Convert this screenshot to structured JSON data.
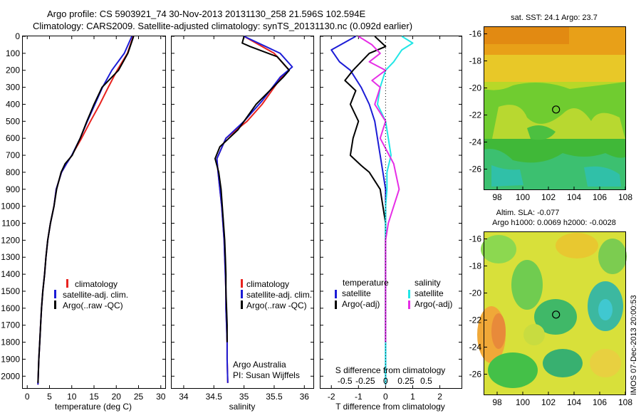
{
  "header": {
    "line1": "Argo profile: CS 5903921_74 30-Nov-2013 20131130_258 21.596S 102.594E",
    "line2": "Climatology: CARS2009. Satellite-adjusted climatology: synTS_20131130.nc (0.092d earlier)"
  },
  "colors": {
    "climatology": "#e8231f",
    "satellite": "#1c1cd6",
    "argo": "#000000",
    "sal_satellite": "#22e6e6",
    "sal_argo": "#e62ee6"
  },
  "chart_data": [
    {
      "id": "temperature",
      "type": "line",
      "xlabel": "temperature (deg C)",
      "xlim": [
        -1,
        31
      ],
      "xticks": [
        0,
        5,
        10,
        15,
        20,
        25,
        30
      ],
      "ylim": [
        2070,
        0
      ],
      "yticks": [
        0,
        100,
        200,
        300,
        400,
        500,
        600,
        700,
        800,
        900,
        1000,
        1100,
        1200,
        1300,
        1400,
        1500,
        1600,
        1700,
        1800,
        1900,
        2000
      ],
      "legend": [
        "climatology",
        "satellite-adj. clim.",
        "Argo(..raw -QC)"
      ],
      "series": [
        {
          "name": "climatology",
          "color": "#e8231f",
          "x": [
            23.8,
            22.5,
            20.2,
            18.2,
            16.3,
            14.2,
            12.2,
            10.0,
            8.8,
            7.7,
            6.5,
            6.0,
            5.2,
            4.6,
            4.2,
            3.9,
            3.5,
            3.2,
            3.0,
            2.8,
            2.6,
            2.4
          ],
          "y": [
            0,
            100,
            200,
            300,
            400,
            500,
            600,
            700,
            750,
            800,
            900,
            1000,
            1100,
            1200,
            1300,
            1400,
            1500,
            1600,
            1700,
            1800,
            1900,
            2050
          ]
        },
        {
          "name": "satellite-adj. clim.",
          "color": "#1c1cd6",
          "x": [
            23.5,
            21.8,
            19.0,
            16.9,
            15.2,
            13.5,
            11.9,
            10.0,
            8.8,
            7.7,
            6.5,
            6.0,
            5.2,
            4.6,
            4.2,
            3.9,
            3.5,
            3.2,
            3.0,
            2.8,
            2.6,
            2.4
          ],
          "y": [
            0,
            100,
            200,
            300,
            400,
            500,
            600,
            700,
            750,
            800,
            900,
            1000,
            1100,
            1200,
            1300,
            1400,
            1500,
            1600,
            1700,
            1800,
            1900,
            2050
          ]
        },
        {
          "name": "Argo(..raw -QC)",
          "color": "#000000",
          "x": [
            23.9,
            22.6,
            20.5,
            16.8,
            15.0,
            13.4,
            11.9,
            10.1,
            8.5,
            7.6,
            6.6,
            6.0,
            5.2,
            4.6,
            4.2,
            3.9,
            3.5,
            3.2,
            3.0,
            2.8,
            2.6,
            2.4
          ],
          "y": [
            0,
            100,
            200,
            300,
            400,
            500,
            600,
            700,
            750,
            800,
            900,
            1000,
            1100,
            1200,
            1300,
            1400,
            1500,
            1600,
            1700,
            1800,
            1900,
            2040
          ]
        }
      ]
    },
    {
      "id": "salinity",
      "type": "line",
      "xlabel": "salinity",
      "xlim": [
        33.8,
        36.15
      ],
      "xticks": [
        34,
        34.5,
        35,
        35.5,
        36
      ],
      "ylim": [
        2070,
        0
      ],
      "legend": [
        "climatology",
        "satellite-adj. clim.",
        "Argo(..raw -QC)"
      ],
      "annotations": [
        "Argo Australia",
        "PI: Susan Wijffels"
      ],
      "series": [
        {
          "name": "climatology",
          "color": "#e8231f",
          "x": [
            35.0,
            35.5,
            35.75,
            35.6,
            35.3,
            35.05,
            34.7,
            34.55,
            34.57,
            34.6,
            34.63,
            34.65,
            34.67,
            34.68,
            34.69,
            34.7,
            34.7,
            34.71,
            34.72,
            34.72,
            34.73
          ],
          "y": [
            0,
            100,
            200,
            250,
            400,
            500,
            600,
            720,
            800,
            900,
            1000,
            1100,
            1200,
            1300,
            1400,
            1500,
            1600,
            1700,
            1800,
            1900,
            2040
          ]
        },
        {
          "name": "satellite-adj. clim.",
          "color": "#1c1cd6",
          "x": [
            35.0,
            35.6,
            35.8,
            35.6,
            35.3,
            35.0,
            34.7,
            34.55,
            34.57,
            34.6,
            34.63,
            34.65,
            34.67,
            34.68,
            34.69,
            34.7,
            34.7,
            34.71,
            34.72,
            34.72,
            34.73
          ],
          "y": [
            0,
            100,
            180,
            240,
            380,
            500,
            600,
            720,
            800,
            900,
            1000,
            1100,
            1200,
            1300,
            1400,
            1500,
            1600,
            1700,
            1800,
            1900,
            2040
          ]
        },
        {
          "name": "Argo(..raw -QC)",
          "color": "#000000",
          "x": [
            35.0,
            34.97,
            35.1,
            35.55,
            35.75,
            35.65,
            35.2,
            34.9,
            34.6,
            34.52,
            34.58,
            34.62,
            34.64,
            34.66,
            34.68,
            34.69,
            34.7,
            34.7,
            34.71,
            34.72,
            34.72
          ],
          "y": [
            0,
            40,
            60,
            120,
            200,
            240,
            400,
            550,
            650,
            720,
            800,
            900,
            1000,
            1100,
            1200,
            1300,
            1400,
            1500,
            1600,
            1700,
            1800
          ]
        }
      ]
    },
    {
      "id": "differences",
      "type": "line",
      "xlabel": "T difference from climatology",
      "xlim": [
        -2.4,
        2.8
      ],
      "xticks": [
        -2,
        -1,
        0,
        1,
        2
      ],
      "secondary_xlabel": "S difference from climatology",
      "secondary_ticks": [
        "-0.5",
        "-0.25",
        "0",
        "0.25",
        "0.5"
      ],
      "ylim": [
        2070,
        0
      ],
      "legend": {
        "temperature_title": "temperature",
        "salinity_title": "salinity",
        "items": [
          "satellite",
          "Argo(-adj)",
          "satellite",
          "Argo(-adj)"
        ]
      },
      "series": [
        {
          "name": "temperature satellite",
          "color": "#1c1cd6",
          "x": [
            -1.1,
            -2.0,
            -1.7,
            -1.3,
            -0.9,
            -0.6,
            -0.4,
            -0.3,
            -0.2,
            -0.1,
            0.0,
            0.0,
            0.0,
            0.0,
            0.0,
            0.0,
            0.0,
            0.0,
            0.0,
            0.0,
            0.0
          ],
          "y": [
            0,
            80,
            150,
            200,
            300,
            400,
            500,
            600,
            700,
            800,
            900,
            1000,
            1100,
            1200,
            1300,
            1400,
            1500,
            1600,
            1700,
            1800,
            2050
          ]
        },
        {
          "name": "temperature Argo(-adj)",
          "color": "#000000",
          "x": [
            -0.4,
            0.0,
            -0.6,
            -1.2,
            -1.5,
            -1.1,
            -1.3,
            -1.0,
            -1.2,
            -1.3,
            -0.9,
            -0.6,
            -0.4,
            -0.2,
            -0.1,
            0.0,
            0.0,
            0.0,
            0.0,
            0.0,
            0.0
          ],
          "y": [
            0,
            60,
            100,
            200,
            260,
            320,
            400,
            500,
            600,
            700,
            760,
            800,
            850,
            900,
            1000,
            1100,
            1200,
            1300,
            1400,
            1600,
            1800
          ]
        },
        {
          "name": "salinity satellite",
          "color": "#22e6e6",
          "x": [
            0.6,
            1.0,
            0.6,
            0.3,
            0.0,
            -0.2,
            -0.3,
            0.0,
            0.1,
            0.2,
            0.05,
            0.05,
            0.0,
            0.0,
            0.0,
            0.0,
            0.0,
            0.0,
            0.0,
            0.0,
            0.0
          ],
          "y": [
            0,
            40,
            80,
            150,
            200,
            300,
            400,
            500,
            600,
            700,
            800,
            900,
            1000,
            1100,
            1200,
            1300,
            1400,
            1500,
            1600,
            1800,
            2050
          ]
        },
        {
          "name": "salinity Argo(-adj)",
          "color": "#e62ee6",
          "x": [
            -1.0,
            -0.5,
            -0.2,
            -0.6,
            0.0,
            -0.5,
            -0.2,
            -0.4,
            0.0,
            -0.2,
            0.3,
            0.5,
            0.3,
            0.1,
            0.0,
            0.0,
            0.0,
            0.0,
            0.0,
            0.0,
            0.0
          ],
          "y": [
            0,
            50,
            100,
            150,
            200,
            260,
            300,
            400,
            500,
            600,
            750,
            900,
            1000,
            1100,
            1200,
            1300,
            1400,
            1500,
            1600,
            1700,
            1800
          ]
        }
      ]
    },
    {
      "id": "sst_map",
      "type": "heatmap",
      "title": "sat. SST: 24.1  Argo: 23.7",
      "xlim": [
        97,
        108
      ],
      "ylim": [
        -27.5,
        -15.5
      ],
      "xticks": [
        98,
        100,
        102,
        104,
        106,
        108
      ],
      "yticks": [
        -16,
        -18,
        -20,
        -22,
        -24,
        -26
      ],
      "marker": {
        "lon": 102.594,
        "lat": -21.596
      }
    },
    {
      "id": "sla_map",
      "type": "heatmap",
      "title_line1": "Altim. SLA: -0.077",
      "title_line2": "Argo h1000: 0.0069 h2000: -0.0028",
      "xlim": [
        97,
        108
      ],
      "ylim": [
        -27.5,
        -15.5
      ],
      "xticks": [
        98,
        100,
        102,
        104,
        106,
        108
      ],
      "yticks": [
        -16,
        -18,
        -20,
        -22,
        -24,
        -26
      ],
      "marker": {
        "lon": 102.594,
        "lat": -21.596
      }
    }
  ],
  "footer": {
    "credit": "IMOS 07-Dec-2013 20:00:53"
  }
}
